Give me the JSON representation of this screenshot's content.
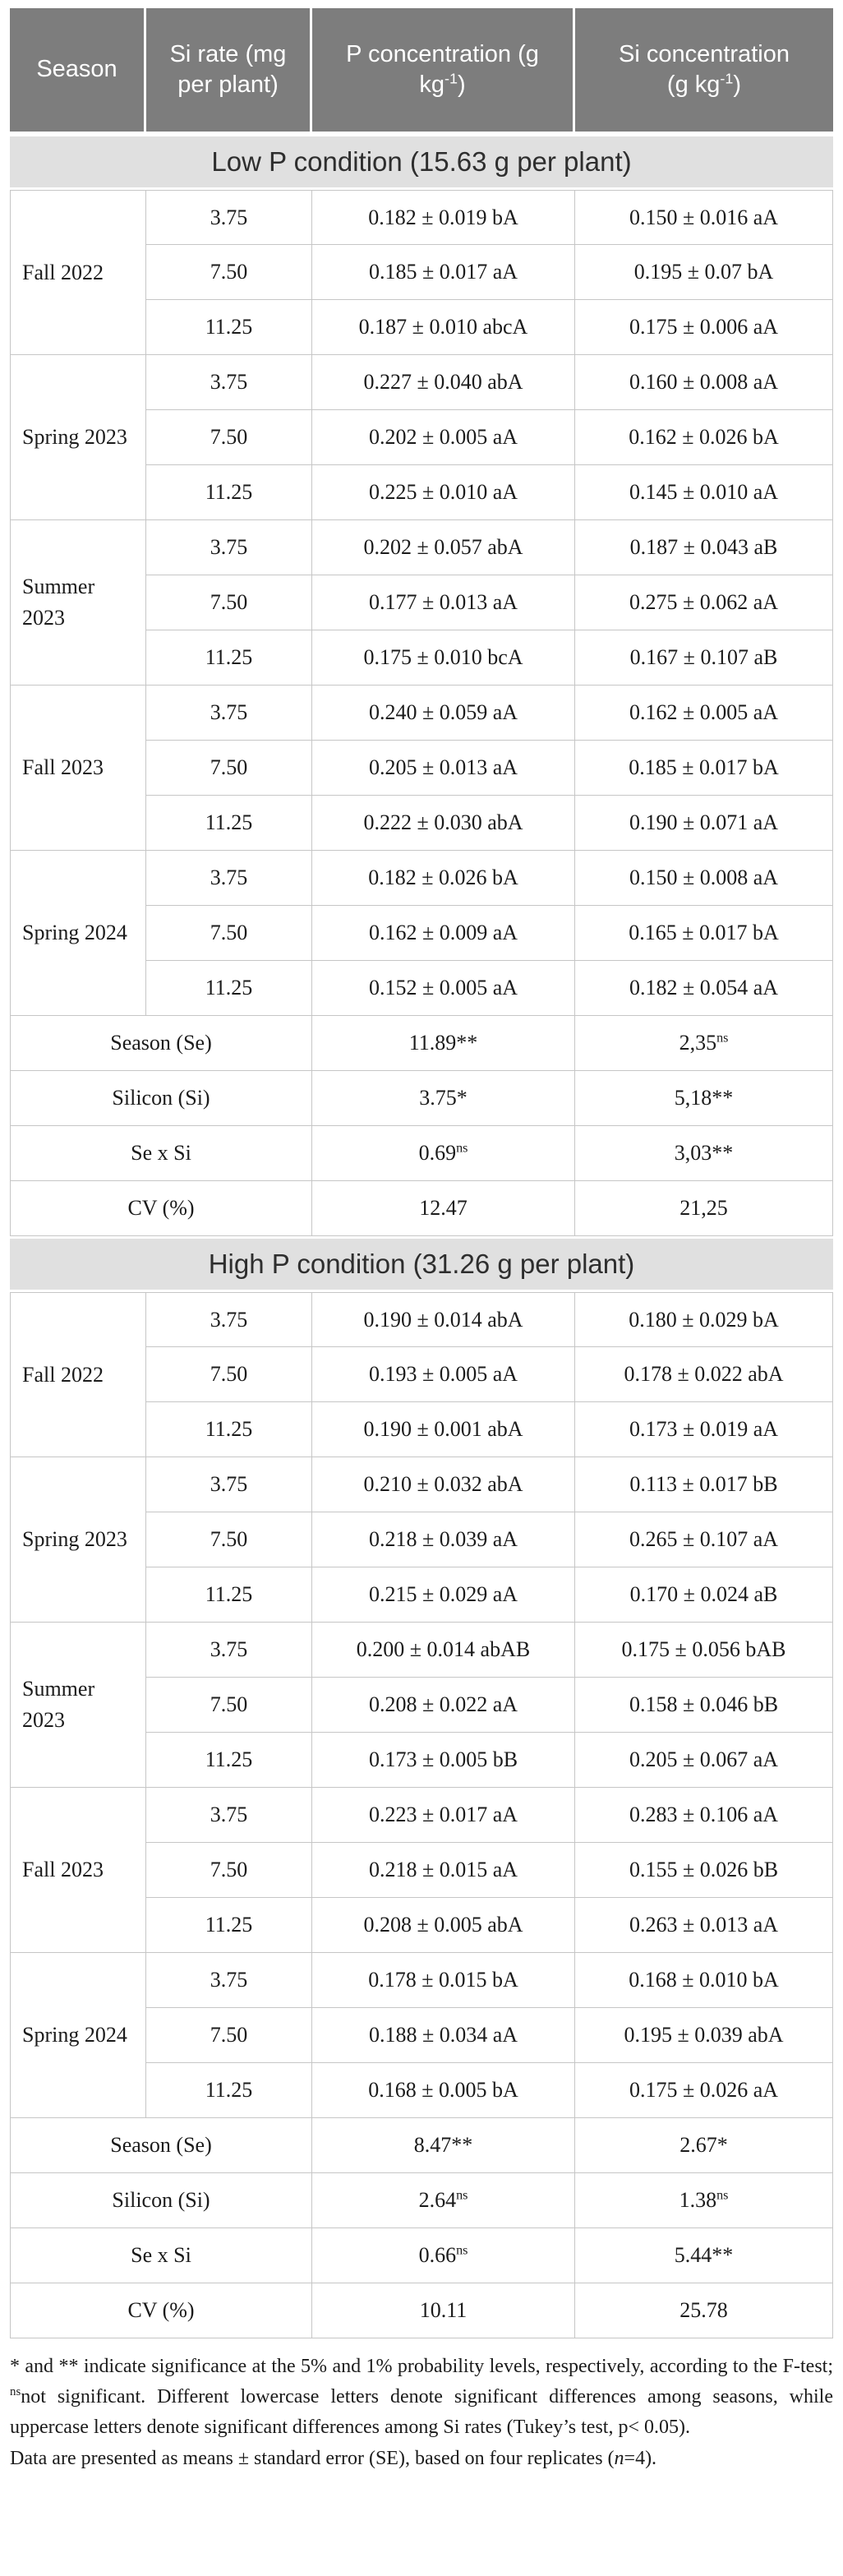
{
  "colors": {
    "header_background": "#7d7d7d",
    "section_band_background": "#e0e0e0",
    "grid_line": "#c6c6c6"
  },
  "table": {
    "columns": {
      "season": "Season",
      "si_rate": "Si rate (mg per plant)",
      "p_conc": {
        "main": "P concentration",
        "unit_pre": "(g kg",
        "unit_sup": "-1",
        "unit_post": ")"
      },
      "si_conc": {
        "main": "Si concentration",
        "unit_pre": "(g kg",
        "unit_sup": "-1",
        "unit_post": ")"
      }
    },
    "sections": [
      {
        "title": "Low P condition (15.63 g per plant)",
        "groups": [
          {
            "season": "Fall 2022",
            "rows": [
              {
                "si_rate": "3.75",
                "p": "0.182 ± 0.019 bA",
                "si": "0.150 ± 0.016 aA"
              },
              {
                "si_rate": "7.50",
                "p": "0.185 ± 0.017 aA",
                "si": "0.195 ± 0.07 bA"
              },
              {
                "si_rate": "11.25",
                "p": "0.187 ± 0.010 abcA",
                "si": "0.175 ± 0.006 aA"
              }
            ]
          },
          {
            "season": "Spring 2023",
            "rows": [
              {
                "si_rate": "3.75",
                "p": "0.227 ± 0.040 abA",
                "si": "0.160 ± 0.008 aA"
              },
              {
                "si_rate": "7.50",
                "p": "0.202 ± 0.005 aA",
                "si": "0.162 ± 0.026 bA"
              },
              {
                "si_rate": "11.25",
                "p": "0.225 ± 0.010 aA",
                "si": "0.145 ± 0.010 aA"
              }
            ]
          },
          {
            "season": "Summer 2023",
            "rows": [
              {
                "si_rate": "3.75",
                "p": "0.202 ± 0.057 abA",
                "si": "0.187 ± 0.043 aB"
              },
              {
                "si_rate": "7.50",
                "p": "0.177 ± 0.013 aA",
                "si": "0.275 ± 0.062 aA"
              },
              {
                "si_rate": "11.25",
                "p": "0.175 ± 0.010 bcA",
                "si": "0.167 ± 0.107 aB"
              }
            ]
          },
          {
            "season": "Fall 2023",
            "rows": [
              {
                "si_rate": "3.75",
                "p": "0.240 ± 0.059 aA",
                "si": "0.162 ± 0.005 aA"
              },
              {
                "si_rate": "7.50",
                "p": "0.205 ± 0.013 aA",
                "si": "0.185 ± 0.017 bA"
              },
              {
                "si_rate": "11.25",
                "p": "0.222 ± 0.030 abA",
                "si": "0.190 ± 0.071 aA"
              }
            ]
          },
          {
            "season": "Spring 2024",
            "rows": [
              {
                "si_rate": "3.75",
                "p": "0.182 ± 0.026 bA",
                "si": "0.150 ± 0.008 aA"
              },
              {
                "si_rate": "7.50",
                "p": "0.162 ± 0.009 aA",
                "si": "0.165 ± 0.017 bA"
              },
              {
                "si_rate": "11.25",
                "p": "0.152 ± 0.005 aA",
                "si": "0.182 ± 0.054 aA"
              }
            ]
          }
        ],
        "stats": [
          {
            "label": "Season (Se)",
            "p": {
              "v": "11.89**",
              "sup": ""
            },
            "si": {
              "v": "2,35",
              "sup": "ns"
            }
          },
          {
            "label": "Silicon (Si)",
            "p": {
              "v": "3.75*",
              "sup": ""
            },
            "si": {
              "v": "5,18**",
              "sup": ""
            }
          },
          {
            "label": "Se x Si",
            "p": {
              "v": "0.69",
              "sup": "ns"
            },
            "si": {
              "v": "3,03**",
              "sup": ""
            }
          },
          {
            "label": "CV (%)",
            "p": {
              "v": "12.47",
              "sup": ""
            },
            "si": {
              "v": "21,25",
              "sup": ""
            }
          }
        ]
      },
      {
        "title": "High P condition (31.26 g per plant)",
        "groups": [
          {
            "season": "Fall 2022",
            "rows": [
              {
                "si_rate": "3.75",
                "p": "0.190 ± 0.014 abA",
                "si": "0.180 ± 0.029 bA"
              },
              {
                "si_rate": "7.50",
                "p": "0.193 ± 0.005 aA",
                "si": "0.178 ± 0.022 abA"
              },
              {
                "si_rate": "11.25",
                "p": "0.190 ± 0.001 abA",
                "si": "0.173 ± 0.019 aA"
              }
            ]
          },
          {
            "season": "Spring 2023",
            "rows": [
              {
                "si_rate": "3.75",
                "p": "0.210 ± 0.032 abA",
                "si": "0.113 ± 0.017 bB"
              },
              {
                "si_rate": "7.50",
                "p": "0.218 ± 0.039 aA",
                "si": "0.265 ± 0.107 aA"
              },
              {
                "si_rate": "11.25",
                "p": "0.215 ± 0.029 aA",
                "si": "0.170 ± 0.024 aB"
              }
            ]
          },
          {
            "season": "Summer 2023",
            "rows": [
              {
                "si_rate": "3.75",
                "p": "0.200 ± 0.014 abAB",
                "si": "0.175 ± 0.056 bAB"
              },
              {
                "si_rate": "7.50",
                "p": "0.208 ± 0.022 aA",
                "si": "0.158 ± 0.046 bB"
              },
              {
                "si_rate": "11.25",
                "p": "0.173 ± 0.005 bB",
                "si": "0.205 ± 0.067 aA"
              }
            ]
          },
          {
            "season": "Fall 2023",
            "rows": [
              {
                "si_rate": "3.75",
                "p": "0.223 ± 0.017 aA",
                "si": "0.283 ± 0.106 aA"
              },
              {
                "si_rate": "7.50",
                "p": "0.218 ± 0.015 aA",
                "si": "0.155 ± 0.026 bB"
              },
              {
                "si_rate": "11.25",
                "p": "0.208 ± 0.005 abA",
                "si": "0.263 ± 0.013 aA"
              }
            ]
          },
          {
            "season": "Spring 2024",
            "rows": [
              {
                "si_rate": "3.75",
                "p": "0.178 ± 0.015 bA",
                "si": "0.168 ± 0.010 bA"
              },
              {
                "si_rate": "7.50",
                "p": "0.188 ± 0.034 aA",
                "si": "0.195 ± 0.039 abA"
              },
              {
                "si_rate": "11.25",
                "p": "0.168 ± 0.005 bA",
                "si": "0.175 ± 0.026 aA"
              }
            ]
          }
        ],
        "stats": [
          {
            "label": "Season (Se)",
            "p": {
              "v": "8.47**",
              "sup": ""
            },
            "si": {
              "v": "2.67*",
              "sup": ""
            }
          },
          {
            "label": "Silicon (Si)",
            "p": {
              "v": "2.64",
              "sup": "ns"
            },
            "si": {
              "v": "1.38",
              "sup": "ns"
            }
          },
          {
            "label": "Se x Si",
            "p": {
              "v": "0.66",
              "sup": "ns"
            },
            "si": {
              "v": "5.44**",
              "sup": ""
            }
          },
          {
            "label": "CV (%)",
            "p": {
              "v": "10.11",
              "sup": ""
            },
            "si": {
              "v": "25.78",
              "sup": ""
            }
          }
        ]
      }
    ]
  },
  "footnote": {
    "p1_before_sup": "* and ** indicate significance at the 5% and 1% probability levels, respectively, according to the F-test; ",
    "p1_sup": "ns",
    "p1_after_sup": "not significant. Different lowercase letters denote significant differences among seasons, while uppercase letters denote significant differences among Si rates (Tukey’s test, p< 0.05).",
    "p2_before_italic": "Data are presented as means ± standard error (SE), based on four replicates (",
    "p2_italic": "n",
    "p2_after_italic": "=4)."
  }
}
